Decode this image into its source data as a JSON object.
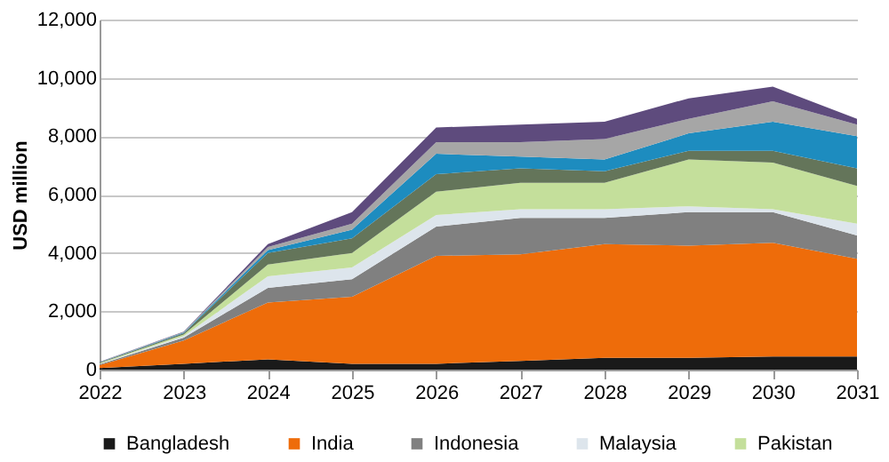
{
  "chart_data": {
    "type": "area",
    "stacked": true,
    "ylabel": "USD million",
    "x": [
      2022,
      2023,
      2024,
      2025,
      2026,
      2027,
      2028,
      2029,
      2030,
      2031
    ],
    "xlim": [
      2022,
      2031
    ],
    "xticks": [
      2022,
      2023,
      2024,
      2025,
      2026,
      2027,
      2028,
      2029,
      2030,
      2031
    ],
    "ylim": [
      0,
      12000
    ],
    "yticks": [
      0,
      {
        "value": 2000,
        "label": "2,000"
      },
      {
        "value": 4000,
        "label": "4,000"
      },
      {
        "value": 6000,
        "label": "6,000"
      },
      {
        "value": 8000,
        "label": "8,000"
      },
      {
        "value": 10000,
        "label": "10,000"
      },
      {
        "value": 12000,
        "label": "12,000"
      }
    ],
    "grid": "y",
    "legend": "bottom",
    "series": [
      {
        "name": "Bangladesh",
        "color": "#1a1a1a",
        "values": [
          50,
          200,
          350,
          200,
          200,
          300,
          400,
          400,
          450,
          450
        ]
      },
      {
        "name": "India",
        "color": "#ee6c0a",
        "values": [
          100,
          800,
          1950,
          2300,
          3700,
          3650,
          3900,
          3850,
          3900,
          3350
        ]
      },
      {
        "name": "Indonesia",
        "color": "#808080",
        "values": [
          30,
          100,
          500,
          600,
          1000,
          1250,
          900,
          1150,
          1050,
          800
        ]
      },
      {
        "name": "Malaysia",
        "color": "#dde5ec",
        "values": [
          20,
          50,
          400,
          400,
          400,
          300,
          300,
          200,
          100,
          400
        ]
      },
      {
        "name": "Pakistan",
        "color": "#c4df9b",
        "values": [
          20,
          50,
          400,
          500,
          800,
          900,
          900,
          1600,
          1600,
          1300
        ]
      },
      {
        "color": "#64755a",
        "values": [
          20,
          50,
          400,
          500,
          600,
          500,
          400,
          300,
          400,
          600
        ]
      },
      {
        "color": "#1d8cbf",
        "values": [
          10,
          20,
          100,
          300,
          700,
          400,
          400,
          600,
          1000,
          1100
        ]
      },
      {
        "color": "#a6a6a6",
        "values": [
          10,
          20,
          100,
          200,
          400,
          500,
          700,
          500,
          700,
          400
        ]
      },
      {
        "color": "#5e4b7d",
        "values": [
          10,
          10,
          100,
          400,
          500,
          600,
          600,
          700,
          500,
          200
        ]
      }
    ]
  }
}
